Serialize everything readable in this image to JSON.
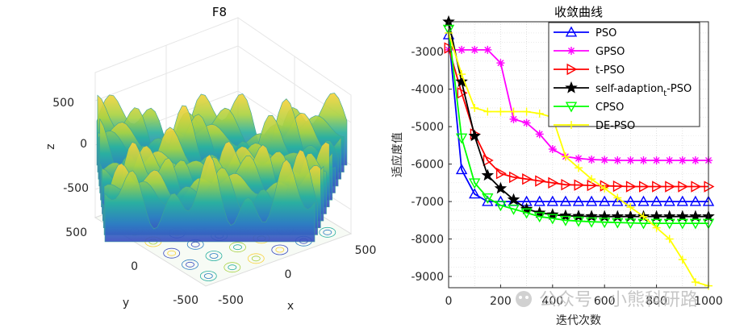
{
  "chart_data": [
    {
      "type": "surface",
      "title": "F8",
      "xlabel": "x",
      "ylabel": "y",
      "zlabel": "z",
      "xticks": [
        "-500",
        "0",
        "500"
      ],
      "yticks": [
        "-500",
        "0",
        "500"
      ],
      "zticks": [
        "500",
        "0",
        "-500"
      ],
      "xlim": [
        -500,
        500
      ],
      "ylim": [
        -500,
        500
      ],
      "zlim": [
        -800,
        800
      ]
    },
    {
      "type": "line",
      "title": "收敛曲线",
      "xlabel": "迭代次数",
      "ylabel": "适应度值",
      "xlim": [
        0,
        1000
      ],
      "ylim": [
        -9300,
        -2200
      ],
      "xticks": [
        "0",
        "200",
        "400",
        "600",
        "800",
        "1000"
      ],
      "yticks": [
        "-3000",
        "-4000",
        "-5000",
        "-6000",
        "-7000",
        "-8000",
        "-9000"
      ],
      "grid": true,
      "legend_position": "top-right",
      "x": [
        0,
        50,
        100,
        150,
        200,
        250,
        300,
        350,
        400,
        450,
        500,
        550,
        600,
        650,
        700,
        750,
        800,
        850,
        900,
        950,
        1000
      ],
      "series": [
        {
          "name": "PSO",
          "color": "#0000ff",
          "marker": "triangle-up",
          "values": [
            -2550,
            -6150,
            -6800,
            -7000,
            -7000,
            -7000,
            -7000,
            -7000,
            -7000,
            -7000,
            -7000,
            -7000,
            -7000,
            -7000,
            -7000,
            -7000,
            -7000,
            -7000,
            -7000,
            -7000,
            -7000
          ]
        },
        {
          "name": "GPSO",
          "color": "#ff00ff",
          "marker": "asterisk",
          "values": [
            -2950,
            -2950,
            -2950,
            -2950,
            -3300,
            -4800,
            -4900,
            -5200,
            -5600,
            -5800,
            -5850,
            -5880,
            -5890,
            -5900,
            -5900,
            -5900,
            -5900,
            -5900,
            -5900,
            -5900,
            -5900
          ]
        },
        {
          "name": "t-PSO",
          "color": "#ff0000",
          "marker": "triangle-right",
          "values": [
            -2900,
            -4100,
            -5200,
            -5900,
            -6250,
            -6350,
            -6400,
            -6450,
            -6500,
            -6550,
            -6560,
            -6570,
            -6580,
            -6590,
            -6600,
            -6600,
            -6600,
            -6600,
            -6600,
            -6600,
            -6600
          ]
        },
        {
          "name": "self-adaption_t-PSO",
          "color": "#000000",
          "marker": "star",
          "values": [
            -2200,
            -3800,
            -5250,
            -6300,
            -6650,
            -6950,
            -7200,
            -7300,
            -7350,
            -7380,
            -7390,
            -7395,
            -7400,
            -7400,
            -7400,
            -7400,
            -7400,
            -7400,
            -7400,
            -7400,
            -7400
          ]
        },
        {
          "name": "CPSO",
          "color": "#00ff00",
          "marker": "triangle-down",
          "values": [
            -2400,
            -5300,
            -6500,
            -6900,
            -7100,
            -7200,
            -7300,
            -7400,
            -7450,
            -7500,
            -7520,
            -7540,
            -7550,
            -7560,
            -7570,
            -7580,
            -7580,
            -7580,
            -7580,
            -7580,
            -7580
          ]
        },
        {
          "name": "DE-PSO",
          "color": "#ffff00",
          "marker": "plus",
          "values": [
            -2500,
            -3600,
            -4500,
            -4600,
            -4600,
            -4600,
            -4600,
            -4650,
            -4750,
            -5800,
            -6100,
            -6400,
            -6650,
            -6900,
            -7150,
            -7400,
            -7700,
            -8000,
            -8550,
            -9150,
            -9250
          ]
        }
      ]
    }
  ],
  "watermark": "公众号 · 小熊科研路"
}
